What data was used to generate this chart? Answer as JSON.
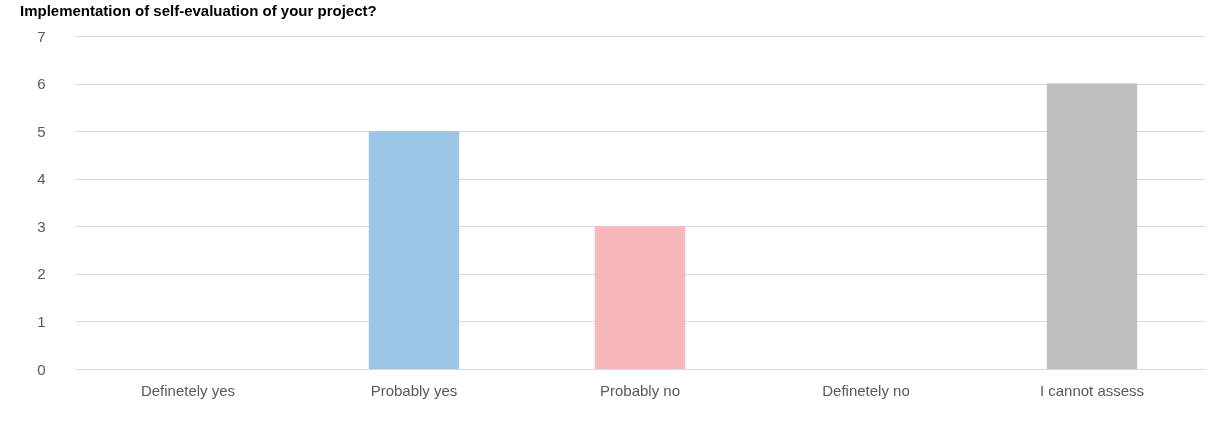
{
  "chart_data": {
    "type": "bar",
    "title": "Implementation of self-evaluation of your project?",
    "categories": [
      "Definetely yes",
      "Probably yes",
      "Probably no",
      "Definetely no",
      "I cannot assess"
    ],
    "values": [
      0,
      5,
      3,
      0,
      6
    ],
    "colors": [
      "#2e75b6",
      "#9dc5e8",
      "#f8b8bb",
      "#c00000",
      "#bfbfbf"
    ],
    "ylim": [
      0,
      7
    ],
    "yticks": [
      0,
      1,
      2,
      3,
      4,
      5,
      6,
      7
    ],
    "grid": "y"
  }
}
